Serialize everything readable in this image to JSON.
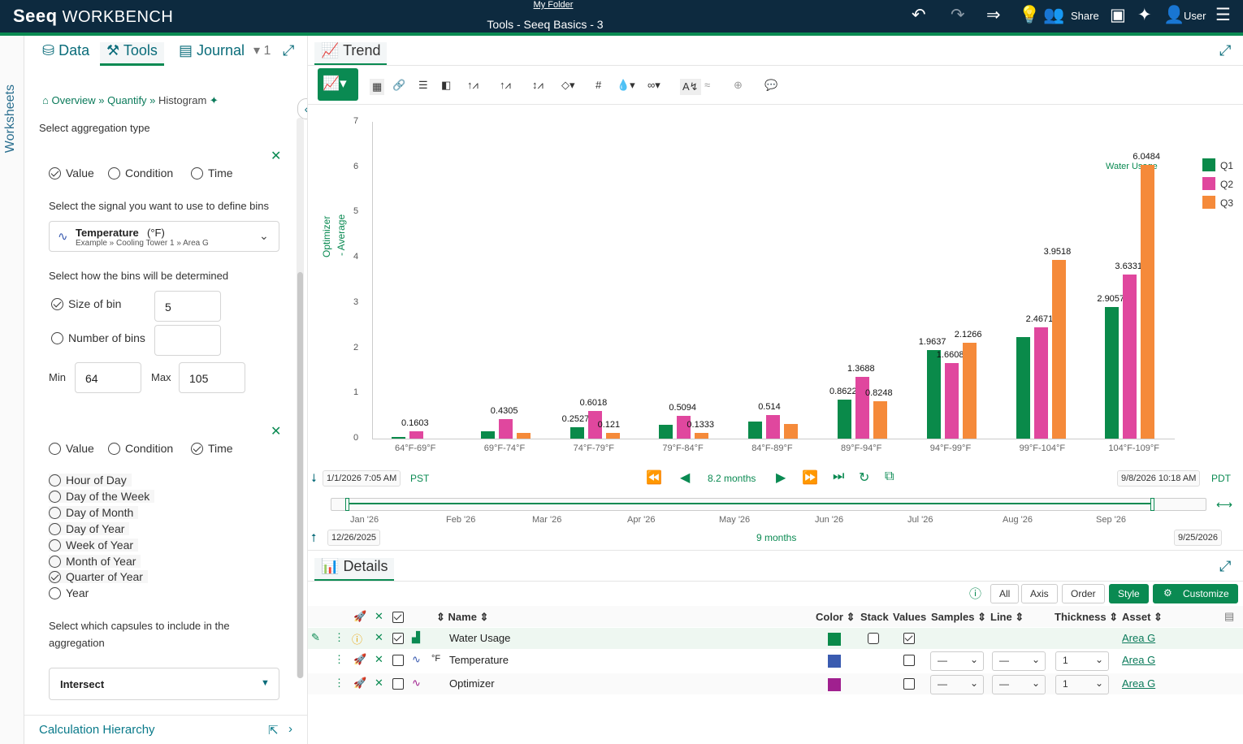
{
  "app": {
    "brand": "Seeq",
    "product": "WORKBENCH",
    "folder": "My Folder",
    "title": "Tools - Seeq Basics - 3",
    "share": "Share",
    "user": "User"
  },
  "worksheets_label": "Worksheets",
  "left": {
    "tabs": {
      "data": "Data",
      "tools": "Tools",
      "journal": "Journal",
      "count": "1"
    },
    "breadcrumb": {
      "overview": "Overview",
      "quantify": "Quantify",
      "current": "Histogram"
    },
    "agg_label": "Select aggregation type",
    "agg1": {
      "value": "Value",
      "condition": "Condition",
      "time": "Time"
    },
    "signal_prompt": "Select the signal you want to use to define bins",
    "signal": {
      "name": "Temperature",
      "unit": "(°F)",
      "path": "Example » Cooling Tower 1 » Area G"
    },
    "bins_prompt": "Select how the bins will be determined",
    "size_of_bin": "Size of bin",
    "size_value": "5",
    "number_of_bins": "Number of bins",
    "number_value": "",
    "min_label": "Min",
    "min_value": "64",
    "max_label": "Max",
    "max_value": "105",
    "agg2": {
      "value": "Value",
      "condition": "Condition",
      "time": "Time"
    },
    "time_bins": [
      "Hour of Day",
      "Day of the Week",
      "Day of Month",
      "Day of Year",
      "Week of Year",
      "Month of Year",
      "Quarter of Year",
      "Year"
    ],
    "capsule_prompt_1": "Select which capsules to include in the",
    "capsule_prompt_2": "aggregation",
    "capsule_mode": "Intersect",
    "calc_hierarchy": "Calculation Hierarchy"
  },
  "trend_tab": "Trend",
  "details_tab": "Details",
  "chart_data": {
    "type": "bar",
    "ylabel_1": "Optimizer",
    "ylabel_2": "- Average",
    "series_title": "Water Usage",
    "ylim": [
      0,
      7
    ],
    "yticks": [
      "0",
      "1",
      "2",
      "3",
      "4",
      "5",
      "6",
      "7"
    ],
    "categories": [
      "64°F-69°F",
      "69°F-74°F",
      "74°F-79°F",
      "79°F-84°F",
      "84°F-89°F",
      "89°F-94°F",
      "94°F-99°F",
      "99°F-104°F",
      "104°F-109°F"
    ],
    "series": [
      {
        "name": "Q1",
        "color": "#0a8a4a",
        "values": [
          0.03,
          0.17,
          0.2527,
          0.3,
          0.38,
          0.8622,
          1.9637,
          2.25,
          2.9057
        ],
        "labels": [
          "",
          "",
          "0.2527",
          "",
          "",
          "0.8622",
          "1.9637",
          "",
          "2.9057"
        ]
      },
      {
        "name": "Q2",
        "color": "#e0479e",
        "values": [
          0.1603,
          0.4305,
          0.6018,
          0.5094,
          0.514,
          1.3688,
          1.6608,
          2.4671,
          3.6331
        ],
        "labels": [
          "0.1603",
          "0.4305",
          "0.6018",
          "0.5094",
          "0.514",
          "1.3688",
          "1.6608",
          "2.4671",
          "3.6331"
        ]
      },
      {
        "name": "Q3",
        "color": "#f58a3a",
        "values": [
          0.0,
          0.12,
          0.121,
          0.1333,
          0.33,
          0.8248,
          2.1266,
          3.9518,
          6.0484
        ],
        "labels": [
          "",
          "",
          "0.121",
          "0.1333",
          "",
          "0.8248",
          "2.1266",
          "3.9518",
          "6.0484"
        ]
      }
    ]
  },
  "nav": {
    "start": "1/1/2026 7:05 AM",
    "start_tz": "PST",
    "duration": "8.2 months",
    "end": "9/8/2026 10:18 AM",
    "end_tz": "PDT",
    "range_start": "12/26/2025",
    "range_duration": "9 months",
    "range_end": "9/25/2026",
    "months": [
      "Jan '26",
      "Feb '26",
      "Mar '26",
      "Apr '26",
      "May '26",
      "Jun '26",
      "Jul '26",
      "Aug '26",
      "Sep '26"
    ]
  },
  "details": {
    "buttons": {
      "all": "All",
      "axis": "Axis",
      "order": "Order",
      "style": "Style",
      "customize": "Customize"
    },
    "headers": {
      "name": "Name",
      "color": "Color",
      "stack": "Stack",
      "values": "Values",
      "samples": "Samples",
      "line": "Line",
      "thickness": "Thickness",
      "asset": "Asset"
    },
    "rows": [
      {
        "name": "Water Usage",
        "unit": "",
        "color": "#0a8a4a",
        "asset": "Area G",
        "samples": "",
        "line": "",
        "thickness": ""
      },
      {
        "name": "Temperature",
        "unit": "°F",
        "color": "#3a5bb0",
        "asset": "Area G",
        "samples": "—",
        "line": "—",
        "thickness": "1"
      },
      {
        "name": "Optimizer",
        "unit": "",
        "color": "#a0208f",
        "asset": "Area G",
        "samples": "—",
        "line": "—",
        "thickness": "1"
      }
    ]
  }
}
